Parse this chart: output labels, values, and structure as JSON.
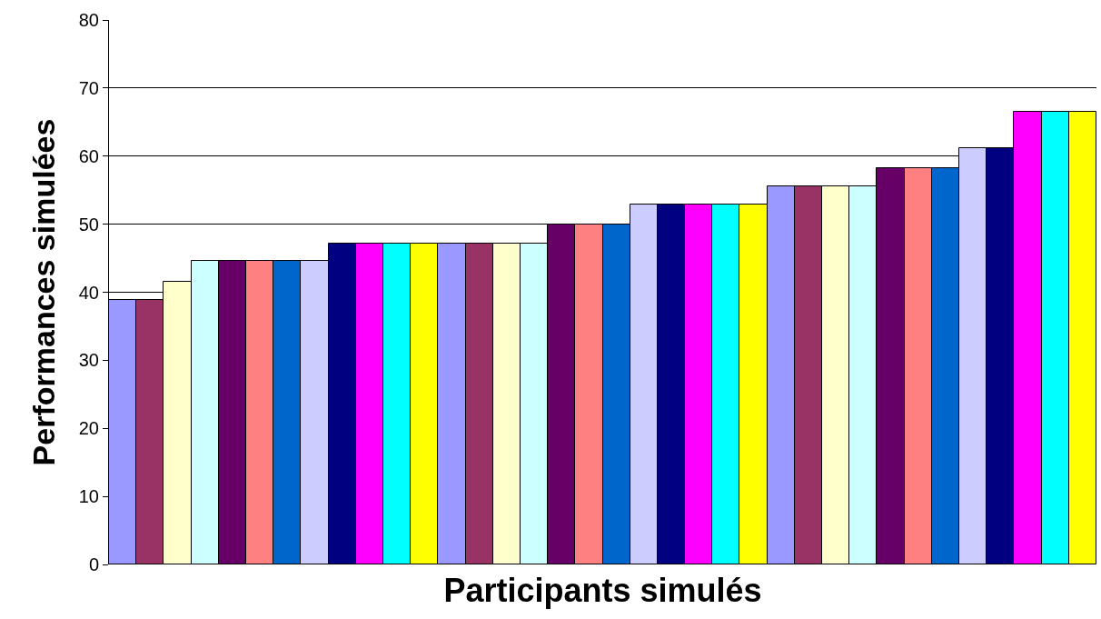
{
  "chart_data": {
    "type": "bar",
    "xlabel": "Participants simulés",
    "ylabel": "Performances simulées",
    "categories": [
      null,
      null,
      null,
      null,
      null,
      null,
      null,
      null,
      null,
      null,
      null,
      null,
      null,
      null,
      null,
      null,
      null,
      null,
      null,
      null,
      null,
      null,
      null,
      null,
      null,
      null,
      null,
      null,
      null,
      null,
      null,
      null,
      null,
      null,
      null,
      null
    ],
    "values": [
      38.9,
      38.9,
      41.5,
      44.6,
      44.6,
      44.6,
      44.6,
      44.6,
      47.2,
      47.2,
      47.2,
      47.2,
      47.2,
      47.2,
      47.2,
      47.2,
      49.9,
      49.9,
      49.9,
      52.9,
      52.9,
      52.9,
      52.9,
      52.9,
      55.5,
      55.5,
      55.5,
      55.5,
      58.2,
      58.2,
      58.2,
      61.2,
      61.2,
      66.5,
      66.5,
      66.5
    ],
    "colors": [
      "#9999ff",
      "#993366",
      "#ffffcc",
      "#ccffff",
      "#660066",
      "#ff8080",
      "#0066cc",
      "#ccccff",
      "#000080",
      "#ff00ff",
      "#00ffff",
      "#ffff00",
      "#9999ff",
      "#993366",
      "#ffffcc",
      "#ccffff",
      "#660066",
      "#ff8080",
      "#0066cc",
      "#ccccff",
      "#000080",
      "#ff00ff",
      "#00ffff",
      "#ffff00",
      "#9999ff",
      "#993366",
      "#ffffcc",
      "#ccffff",
      "#660066",
      "#ff8080",
      "#0066cc",
      "#ccccff",
      "#000080",
      "#ff00ff",
      "#00ffff",
      "#ffff00"
    ],
    "ylim": [
      0,
      80
    ],
    "yticks": [
      0,
      10,
      20,
      30,
      40,
      50,
      60,
      70,
      80
    ],
    "grid": "y"
  }
}
